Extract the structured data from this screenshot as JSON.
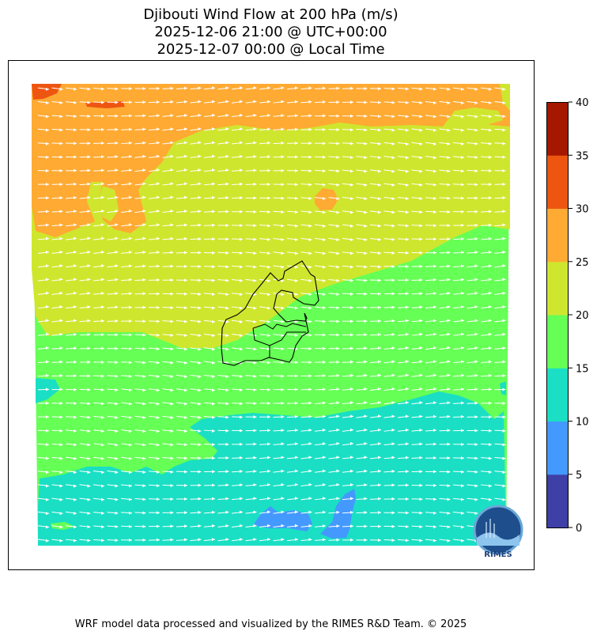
{
  "title": {
    "line1": "Djibouti Wind Flow at 200 hPa (m/s)",
    "line2": "2025-12-06 21:00 @ UTC+00:00",
    "line3": "2025-12-07 00:00 @ Local Time"
  },
  "colorbar": {
    "ticks": [
      "0",
      "5",
      "10",
      "15",
      "20",
      "25",
      "30",
      "35",
      "40"
    ],
    "colors": [
      "#3f3fa8",
      "#4499ff",
      "#1adfc4",
      "#66ff55",
      "#cfe62e",
      "#ffaa33",
      "#ee5511",
      "#a61700"
    ]
  },
  "palette": {
    "band_15_20": "#66ff55",
    "band_20_25": "#cfe62e",
    "band_25_30": "#ffaa33",
    "band_30_35": "#ee5511",
    "band_10_15": "#1adfc4",
    "band_5_10": "#4499ff",
    "arrow": "#ffffff",
    "border": "#000000"
  },
  "logo": {
    "text": "RIMES"
  },
  "footer": "WRF model data processed and visualized by the RIMES R&D Team. © 2025"
}
